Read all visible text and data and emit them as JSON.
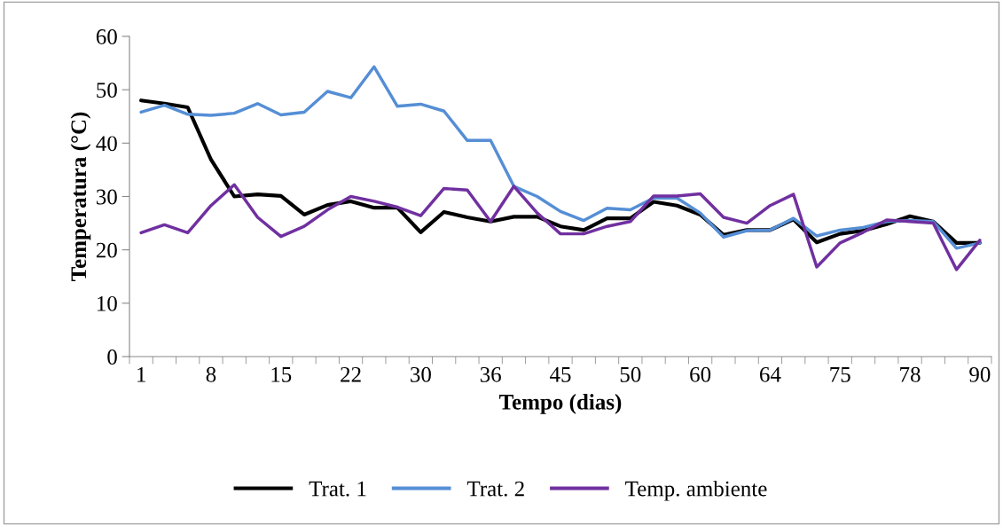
{
  "chart_data": {
    "type": "line",
    "xlabel": "Tempo (dias)",
    "ylabel": "Temperatura (°C)",
    "categories": [
      "1",
      null,
      null,
      "8",
      null,
      null,
      "15",
      null,
      null,
      "22",
      null,
      null,
      "30",
      null,
      null,
      "36",
      null,
      null,
      "45",
      null,
      null,
      "50",
      null,
      null,
      "60",
      null,
      null,
      "64",
      null,
      null,
      "75",
      null,
      null,
      "78",
      null,
      null,
      "90"
    ],
    "series": [
      {
        "name": "Trat. 1",
        "color": "#000000",
        "values": [
          48.0,
          47.4,
          46.7,
          36.9,
          30.0,
          30.4,
          30.1,
          26.6,
          28.4,
          29.1,
          27.9,
          27.9,
          23.3,
          27.1,
          26.1,
          25.3,
          26.2,
          26.2,
          24.4,
          23.7,
          25.9,
          25.9,
          29.0,
          28.3,
          26.6,
          22.8,
          23.7,
          23.7,
          25.7,
          21.4,
          23.0,
          23.6,
          24.8,
          26.3,
          25.3,
          21.3,
          21.3
        ]
      },
      {
        "name": "Trat. 2",
        "color": "#558ed5",
        "values": [
          45.8,
          47.1,
          45.4,
          45.2,
          45.6,
          47.4,
          45.3,
          45.8,
          49.7,
          48.5,
          54.3,
          46.9,
          47.3,
          46.0,
          40.5,
          40.5,
          31.9,
          30.0,
          27.2,
          25.5,
          27.8,
          27.5,
          29.7,
          29.7,
          26.9,
          22.4,
          23.6,
          23.7,
          25.9,
          22.6,
          23.7,
          24.2,
          25.3,
          25.5,
          25.3,
          20.3,
          21.3
        ]
      },
      {
        "name": "Temp. ambiente",
        "color": "#7030a0",
        "values": [
          23.2,
          24.7,
          23.2,
          28.3,
          32.2,
          26.1,
          22.5,
          24.4,
          27.5,
          30.0,
          29.1,
          28.0,
          26.4,
          31.5,
          31.2,
          25.3,
          31.9,
          26.9,
          23.0,
          23.0,
          24.4,
          25.3,
          30.1,
          30.1,
          30.5,
          26.1,
          25.0,
          28.3,
          30.4,
          16.8,
          21.3,
          23.3,
          25.6,
          25.3,
          25.0,
          16.3,
          21.8
        ]
      }
    ],
    "ylim": [
      0,
      60
    ],
    "yticks": [
      0,
      10,
      20,
      30,
      40,
      50,
      60
    ],
    "legend": "bottom",
    "grid": false,
    "marker": "none",
    "line_style": "solid"
  }
}
